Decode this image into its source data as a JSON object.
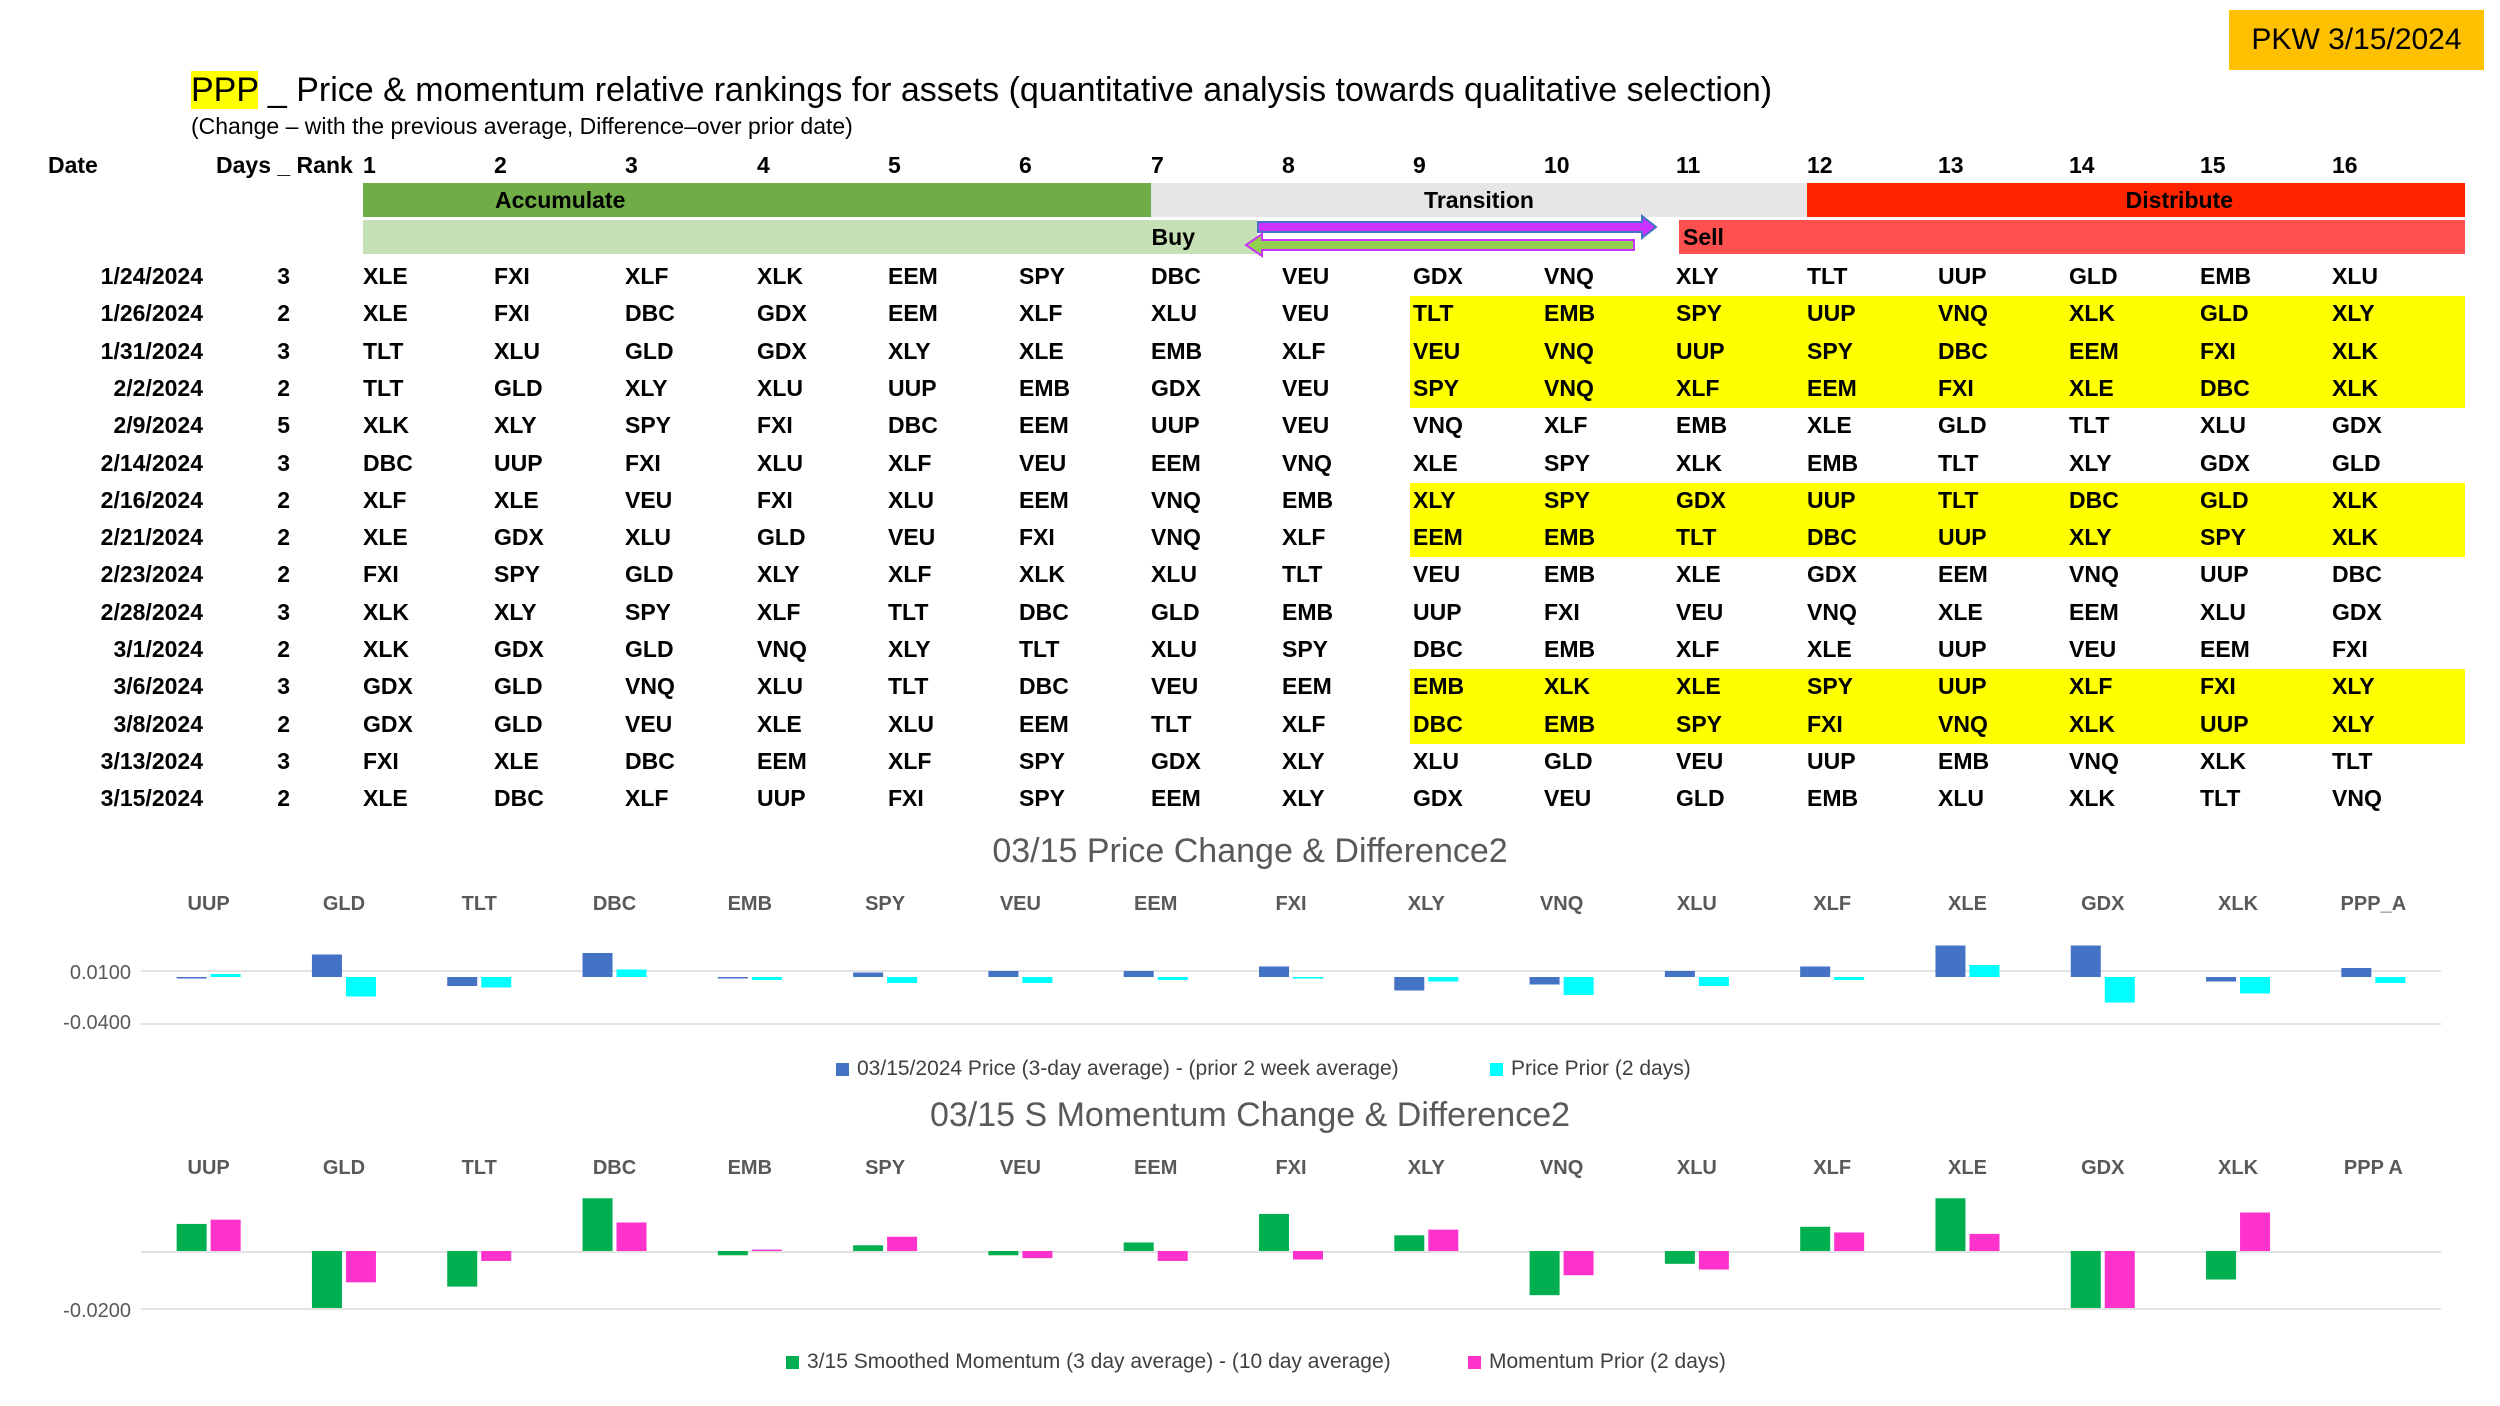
{
  "badge": "PKW 3/15/2024",
  "title": {
    "ticker": "PPP",
    "rest": " _ Price & momentum relative rankings for assets (quantitative analysis towards qualitative selection)"
  },
  "subtitle": "(Change – with the previous average, Difference–over prior date)",
  "headers": {
    "date": "Date",
    "days_rank": "Days _ Rank",
    "ranks": [
      "1",
      "2",
      "3",
      "4",
      "5",
      "6",
      "7",
      "8",
      "9",
      "10",
      "11",
      "12",
      "13",
      "14",
      "15",
      "16"
    ]
  },
  "zones": {
    "accumulate": "Accumulate",
    "transition": "Transition",
    "distribute": "Distribute",
    "buy": "Buy",
    "sell": "Sell"
  },
  "colors": {
    "accumulate": "#70ad47",
    "buy": "#c5e0b4",
    "transition": "#e7e6e6",
    "distribute": "#ff2500",
    "sell": "#ff5050",
    "highlight": "#ffff00",
    "arrow_fill": "#cc33ff",
    "arrow_fill2": "#92d050",
    "arrow_stroke": "#4472c4"
  },
  "rows": [
    {
      "date": "1/24/2024",
      "days": "3",
      "hl": false,
      "assets": [
        "XLE",
        "FXI",
        "XLF",
        "XLK",
        "EEM",
        "SPY",
        "DBC",
        "VEU",
        "GDX",
        "VNQ",
        "XLY",
        "TLT",
        "UUP",
        "GLD",
        "EMB",
        "XLU"
      ]
    },
    {
      "date": "1/26/2024",
      "days": "2",
      "hl": true,
      "assets": [
        "XLE",
        "FXI",
        "DBC",
        "GDX",
        "EEM",
        "XLF",
        "XLU",
        "VEU",
        "TLT",
        "EMB",
        "SPY",
        "UUP",
        "VNQ",
        "XLK",
        "GLD",
        "XLY"
      ]
    },
    {
      "date": "1/31/2024",
      "days": "3",
      "hl": true,
      "assets": [
        "TLT",
        "XLU",
        "GLD",
        "GDX",
        "XLY",
        "XLE",
        "EMB",
        "XLF",
        "VEU",
        "VNQ",
        "UUP",
        "SPY",
        "DBC",
        "EEM",
        "FXI",
        "XLK"
      ]
    },
    {
      "date": "2/2/2024",
      "days": "2",
      "hl": true,
      "assets": [
        "TLT",
        "GLD",
        "XLY",
        "XLU",
        "UUP",
        "EMB",
        "GDX",
        "VEU",
        "SPY",
        "VNQ",
        "XLF",
        "EEM",
        "FXI",
        "XLE",
        "DBC",
        "XLK"
      ]
    },
    {
      "date": "2/9/2024",
      "days": "5",
      "hl": false,
      "assets": [
        "XLK",
        "XLY",
        "SPY",
        "FXI",
        "DBC",
        "EEM",
        "UUP",
        "VEU",
        "VNQ",
        "XLF",
        "EMB",
        "XLE",
        "GLD",
        "TLT",
        "XLU",
        "GDX"
      ]
    },
    {
      "date": "2/14/2024",
      "days": "3",
      "hl": false,
      "assets": [
        "DBC",
        "UUP",
        "FXI",
        "XLU",
        "XLF",
        "VEU",
        "EEM",
        "VNQ",
        "XLE",
        "SPY",
        "XLK",
        "EMB",
        "TLT",
        "XLY",
        "GDX",
        "GLD"
      ]
    },
    {
      "date": "2/16/2024",
      "days": "2",
      "hl": true,
      "assets": [
        "XLF",
        "XLE",
        "VEU",
        "FXI",
        "XLU",
        "EEM",
        "VNQ",
        "EMB",
        "XLY",
        "SPY",
        "GDX",
        "UUP",
        "TLT",
        "DBC",
        "GLD",
        "XLK"
      ]
    },
    {
      "date": "2/21/2024",
      "days": "2",
      "hl": true,
      "assets": [
        "XLE",
        "GDX",
        "XLU",
        "GLD",
        "VEU",
        "FXI",
        "VNQ",
        "XLF",
        "EEM",
        "EMB",
        "TLT",
        "DBC",
        "UUP",
        "XLY",
        "SPY",
        "XLK"
      ]
    },
    {
      "date": "2/23/2024",
      "days": "2",
      "hl": false,
      "assets": [
        "FXI",
        "SPY",
        "GLD",
        "XLY",
        "XLF",
        "XLK",
        "XLU",
        "TLT",
        "VEU",
        "EMB",
        "XLE",
        "GDX",
        "EEM",
        "VNQ",
        "UUP",
        "DBC"
      ]
    },
    {
      "date": "2/28/2024",
      "days": "3",
      "hl": false,
      "assets": [
        "XLK",
        "XLY",
        "SPY",
        "XLF",
        "TLT",
        "DBC",
        "GLD",
        "EMB",
        "UUP",
        "FXI",
        "VEU",
        "VNQ",
        "XLE",
        "EEM",
        "XLU",
        "GDX"
      ]
    },
    {
      "date": "3/1/2024",
      "days": "2",
      "hl": false,
      "assets": [
        "XLK",
        "GDX",
        "GLD",
        "VNQ",
        "XLY",
        "TLT",
        "XLU",
        "SPY",
        "DBC",
        "EMB",
        "XLF",
        "XLE",
        "UUP",
        "VEU",
        "EEM",
        "FXI"
      ]
    },
    {
      "date": "3/6/2024",
      "days": "3",
      "hl": true,
      "assets": [
        "GDX",
        "GLD",
        "VNQ",
        "XLU",
        "TLT",
        "DBC",
        "VEU",
        "EEM",
        "EMB",
        "XLK",
        "XLE",
        "SPY",
        "UUP",
        "XLF",
        "FXI",
        "XLY"
      ]
    },
    {
      "date": "3/8/2024",
      "days": "2",
      "hl": true,
      "assets": [
        "GDX",
        "GLD",
        "VEU",
        "XLE",
        "XLU",
        "EEM",
        "TLT",
        "XLF",
        "DBC",
        "EMB",
        "SPY",
        "FXI",
        "VNQ",
        "XLK",
        "UUP",
        "XLY"
      ]
    },
    {
      "date": "3/13/2024",
      "days": "3",
      "hl": false,
      "assets": [
        "FXI",
        "XLE",
        "DBC",
        "EEM",
        "XLF",
        "SPY",
        "GDX",
        "XLY",
        "XLU",
        "GLD",
        "VEU",
        "UUP",
        "EMB",
        "VNQ",
        "XLK",
        "TLT"
      ]
    },
    {
      "date": "3/15/2024",
      "days": "2",
      "hl": false,
      "assets": [
        "XLE",
        "DBC",
        "XLF",
        "UUP",
        "FXI",
        "SPY",
        "EEM",
        "XLY",
        "GDX",
        "VEU",
        "GLD",
        "EMB",
        "XLU",
        "XLK",
        "TLT",
        "VNQ"
      ]
    }
  ],
  "chart_data": [
    {
      "type": "bar",
      "title": "03/15 Price Change & Difference2",
      "categories": [
        "UUP",
        "GLD",
        "TLT",
        "DBC",
        "EMB",
        "SPY",
        "VEU",
        "EEM",
        "FXI",
        "XLY",
        "VNQ",
        "XLU",
        "XLF",
        "XLE",
        "GDX",
        "XLK",
        "PPP_A"
      ],
      "series": [
        {
          "name": "03/15/2024 Price (3-day average) - (prior 2 week average)",
          "color": "#4472c4",
          "values": [
            -0.001,
            0.015,
            -0.006,
            0.016,
            -0.001,
            0.003,
            0.004,
            0.004,
            0.007,
            -0.009,
            -0.005,
            0.004,
            0.007,
            0.021,
            0.021,
            -0.003,
            0.006
          ]
        },
        {
          "name": "Price Prior (2 days)",
          "color": "#00ffff",
          "values": [
            0.002,
            -0.013,
            -0.007,
            0.005,
            -0.002,
            -0.004,
            -0.004,
            -0.002,
            -0.001,
            -0.003,
            -0.012,
            -0.006,
            -0.002,
            0.008,
            -0.017,
            -0.011,
            -0.004
          ]
        }
      ],
      "yticks": [
        "0.0100",
        "-0.0400"
      ],
      "ylim": [
        -0.04,
        0.03
      ],
      "xlabel": "",
      "ylabel": "",
      "legend": "bottom"
    },
    {
      "type": "bar",
      "title": "03/15 S Momentum Change & Difference2",
      "categories": [
        "UUP",
        "GLD",
        "TLT",
        "DBC",
        "EMB",
        "SPY",
        "VEU",
        "EEM",
        "FXI",
        "XLY",
        "VNQ",
        "XLU",
        "XLF",
        "XLE",
        "GDX",
        "XLK",
        "PPP A"
      ],
      "series": [
        {
          "name": "3/15 Smoothed Momentum (3 day average) - (10 day average)",
          "color": "#00b050",
          "values": [
            0.0095,
            -0.02,
            -0.0125,
            0.0185,
            -0.0015,
            0.002,
            -0.0015,
            0.003,
            0.013,
            0.0055,
            -0.0155,
            -0.0045,
            0.0085,
            0.0185,
            -0.02,
            -0.01,
            0
          ]
        },
        {
          "name": "Momentum Prior (2 days)",
          "color": "#ff33cc",
          "values": [
            0.011,
            -0.011,
            -0.0035,
            0.01,
            0.0005,
            0.005,
            -0.0025,
            -0.0035,
            -0.003,
            0.0075,
            -0.0085,
            -0.0065,
            0.0065,
            0.006,
            -0.02,
            0.0135,
            0
          ]
        }
      ],
      "yticks": [
        "-0.0200"
      ],
      "ylim": [
        -0.02,
        0.02
      ],
      "xlabel": "",
      "ylabel": "",
      "legend": "bottom"
    }
  ]
}
